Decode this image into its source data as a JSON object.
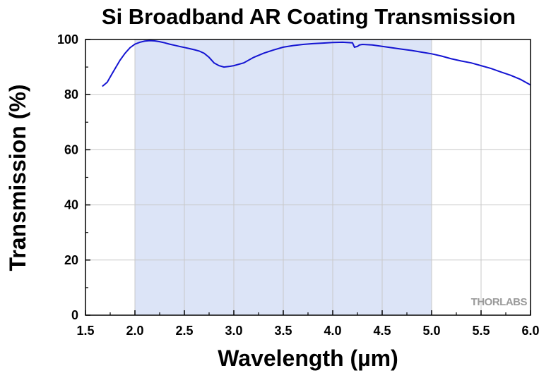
{
  "chart_data": {
    "type": "line",
    "title": "Si Broadband AR Coating Transmission",
    "xlabel": "Wavelength (µm)",
    "ylabel": "Transmission (%)",
    "xlim": [
      1.5,
      6.0
    ],
    "ylim": [
      0,
      100
    ],
    "xticks": [
      "1.5",
      "2.0",
      "2.5",
      "3.0",
      "3.5",
      "4.0",
      "4.5",
      "5.0",
      "5.5",
      "6.0"
    ],
    "yticks": [
      "0",
      "20",
      "40",
      "60",
      "80",
      "100"
    ],
    "grid": true,
    "shaded_band": {
      "x_start": 2.0,
      "x_end": 5.0,
      "color": "#dce4f7"
    },
    "line_color": "#1414d2",
    "logo_text": "THORLABS",
    "series": [
      {
        "x": [
          1.67,
          1.72,
          1.76,
          1.8,
          1.85,
          1.9,
          1.95,
          2.0,
          2.05,
          2.1,
          2.15,
          2.2,
          2.25,
          2.3,
          2.35,
          2.4,
          2.45,
          2.5,
          2.55,
          2.6,
          2.65,
          2.7,
          2.75,
          2.8,
          2.85,
          2.9,
          2.95,
          3.0,
          3.1,
          3.2,
          3.3,
          3.4,
          3.5,
          3.6,
          3.7,
          3.8,
          3.9,
          4.0,
          4.1,
          4.2,
          4.22,
          4.25,
          4.27,
          4.3,
          4.4,
          4.5,
          4.6,
          4.7,
          4.8,
          4.9,
          5.0,
          5.1,
          5.2,
          5.3,
          5.4,
          5.5,
          5.6,
          5.7,
          5.8,
          5.9,
          6.0
        ],
        "y": [
          83.0,
          84.5,
          87.0,
          89.5,
          92.5,
          95.0,
          97.0,
          98.3,
          99.0,
          99.4,
          99.6,
          99.5,
          99.2,
          98.8,
          98.3,
          97.9,
          97.5,
          97.1,
          96.7,
          96.3,
          95.8,
          95.0,
          93.5,
          91.5,
          90.5,
          90.0,
          90.2,
          90.5,
          91.5,
          93.5,
          95.0,
          96.2,
          97.2,
          97.8,
          98.2,
          98.5,
          98.7,
          98.9,
          99.0,
          98.8,
          97.2,
          97.5,
          98.0,
          98.2,
          98.0,
          97.5,
          97.0,
          96.5,
          96.0,
          95.4,
          94.8,
          94.0,
          93.0,
          92.2,
          91.5,
          90.5,
          89.5,
          88.2,
          87.0,
          85.5,
          83.5
        ]
      }
    ]
  }
}
